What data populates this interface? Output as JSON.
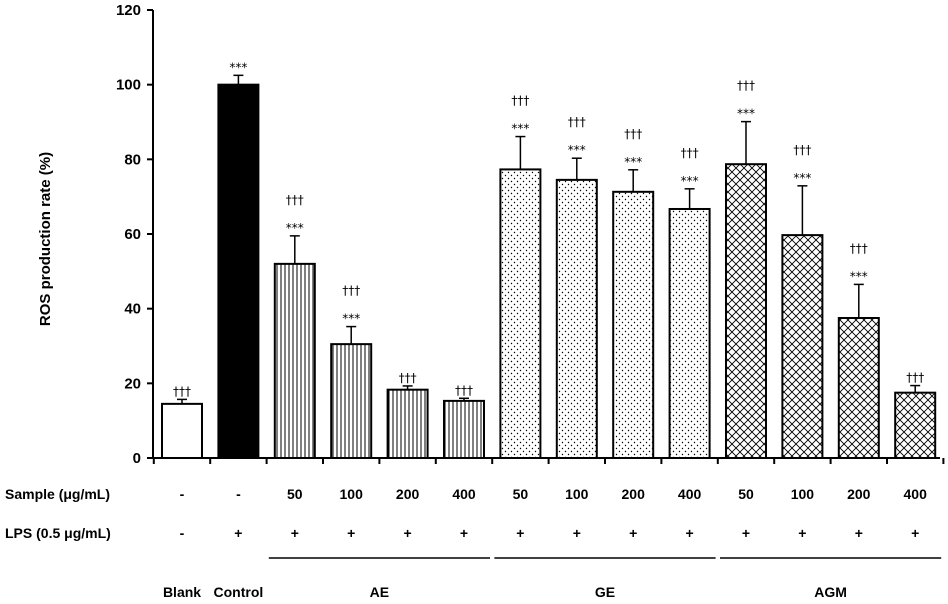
{
  "chart_data": {
    "type": "bar",
    "ylabel": "ROS production rate (%)",
    "ylim": [
      0,
      120
    ],
    "yticks": [
      "0",
      "20",
      "40",
      "60",
      "80",
      "100",
      "120"
    ],
    "categories": [
      "Blank",
      "Control",
      "AE 50",
      "AE 100",
      "AE 200",
      "AE 400",
      "GE 50",
      "GE 100",
      "GE 200",
      "GE 400",
      "AGM 50",
      "AGM 100",
      "AGM 200",
      "AGM 400"
    ],
    "values": [
      14.5,
      100,
      52,
      30.5,
      18.3,
      15.3,
      77.3,
      74.5,
      71.3,
      66.7,
      78.7,
      59.7,
      37.5,
      17.5
    ],
    "errors": [
      1.2,
      2.5,
      7.5,
      4.7,
      1.0,
      0.7,
      8.8,
      5.8,
      5.9,
      5.4,
      11.4,
      13.2,
      9.0,
      1.9
    ],
    "fills": [
      "white",
      "black",
      "vlines",
      "vlines",
      "vlines",
      "vlines",
      "dots",
      "dots",
      "dots",
      "dots",
      "cross",
      "cross",
      "cross",
      "cross"
    ],
    "significance_daggers": [
      "†††",
      "",
      "†††",
      "†††",
      "†††",
      "†††",
      "†††",
      "†††",
      "†††",
      "†††",
      "†††",
      "†††",
      "†††",
      "†††"
    ],
    "significance_stars": [
      "",
      "***",
      "***",
      "***",
      "",
      "",
      "***",
      "***",
      "***",
      "***",
      "***",
      "***",
      "***",
      ""
    ],
    "sample_row": {
      "label": "Sample (μg/mL)",
      "values": [
        "-",
        "-",
        "50",
        "100",
        "200",
        "400",
        "50",
        "100",
        "200",
        "400",
        "50",
        "100",
        "200",
        "400"
      ]
    },
    "lps_row": {
      "label": "LPS (0.5 μg/mL)",
      "values": [
        "-",
        "+",
        "+",
        "+",
        "+",
        "+",
        "+",
        "+",
        "+",
        "+",
        "+",
        "+",
        "+",
        "+"
      ]
    },
    "groups": [
      {
        "label": "Blank",
        "start": 0,
        "end": 0,
        "line": false
      },
      {
        "label": "Control",
        "start": 1,
        "end": 1,
        "line": false
      },
      {
        "label": "AE",
        "start": 2,
        "end": 5,
        "line": true
      },
      {
        "label": "GE",
        "start": 6,
        "end": 9,
        "line": true
      },
      {
        "label": "AGM",
        "start": 10,
        "end": 13,
        "line": true
      }
    ]
  }
}
